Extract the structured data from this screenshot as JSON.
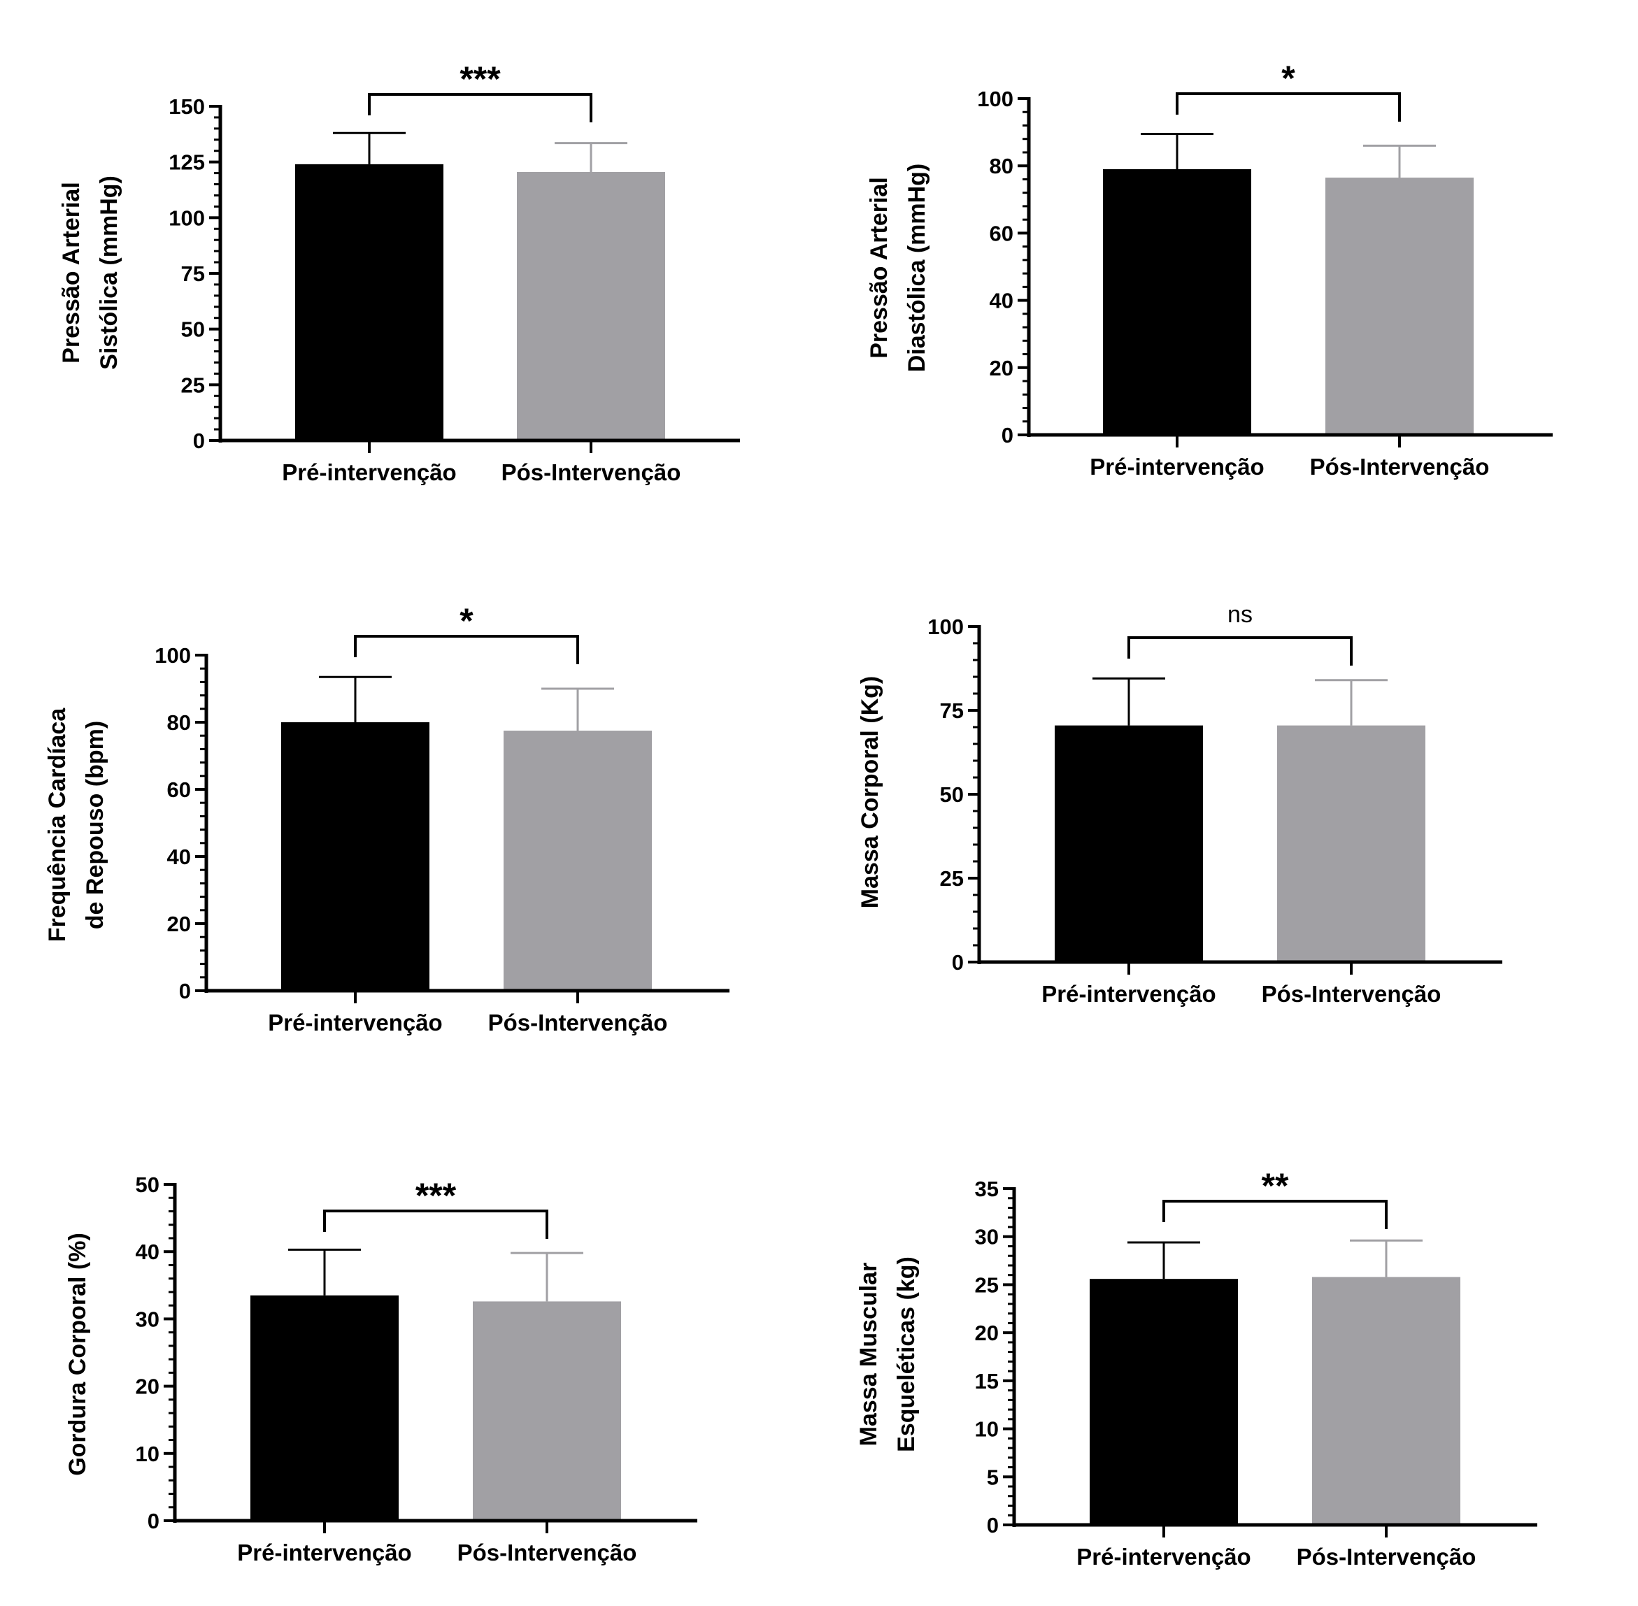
{
  "colors": {
    "pre": "#000000",
    "post": "#a1a0a4",
    "axis": "#000000"
  },
  "chart_data": [
    {
      "type": "bar",
      "categories": [
        "Pré-intervenção",
        "Pós-Intervenção"
      ],
      "values": [
        124,
        120.5
      ],
      "errors": [
        14,
        13
      ],
      "ylabel": [
        "Pressão Arterial",
        "Sistólica (mmHg)"
      ],
      "ylim": [
        0,
        150
      ],
      "yticks": [
        "0",
        "25",
        "50",
        "75",
        "100",
        "125",
        "150"
      ],
      "significance": "***"
    },
    {
      "type": "bar",
      "categories": [
        "Pré-intervenção",
        "Pós-Intervenção"
      ],
      "values": [
        79,
        76.5
      ],
      "errors": [
        10.5,
        9.5
      ],
      "ylabel": [
        "Pressão Arterial",
        "Diastólica (mmHg)"
      ],
      "ylim": [
        0,
        100
      ],
      "yticks": [
        "0",
        "20",
        "40",
        "60",
        "80",
        "100"
      ],
      "significance": "*"
    },
    {
      "type": "bar",
      "categories": [
        "Pré-intervenção",
        "Pós-Intervenção"
      ],
      "values": [
        80,
        77.5
      ],
      "errors": [
        13.5,
        12.5
      ],
      "ylabel": [
        "Frequência Cardíaca",
        "de Repouso (bpm)"
      ],
      "ylim": [
        0,
        100
      ],
      "yticks": [
        "0",
        "20",
        "40",
        "60",
        "80",
        "100"
      ],
      "significance": "*"
    },
    {
      "type": "bar",
      "categories": [
        "Pré-intervenção",
        "Pós-Intervenção"
      ],
      "values": [
        70.5,
        70.5
      ],
      "errors": [
        14,
        13.5
      ],
      "ylabel": [
        "Massa Corporal (Kg)"
      ],
      "ylim": [
        0,
        100
      ],
      "yticks": [
        "0",
        "25",
        "50",
        "75",
        "100"
      ],
      "significance": "ns"
    },
    {
      "type": "bar",
      "categories": [
        "Pré-intervenção",
        "Pós-Intervenção"
      ],
      "values": [
        33.5,
        32.6
      ],
      "errors": [
        6.8,
        7.2
      ],
      "ylabel": [
        "Gordura Corporal (%)"
      ],
      "ylim": [
        0,
        50
      ],
      "yticks": [
        "0",
        "10",
        "20",
        "30",
        "40",
        "50"
      ],
      "significance": "***"
    },
    {
      "type": "bar",
      "categories": [
        "Pré-intervenção",
        "Pós-Intervenção"
      ],
      "values": [
        25.6,
        25.8
      ],
      "errors": [
        3.8,
        3.8
      ],
      "ylabel": [
        "Massa Muscular",
        "Esqueléticas (kg)"
      ],
      "ylim": [
        0,
        35
      ],
      "yticks": [
        "0",
        "5",
        "10",
        "15",
        "20",
        "25",
        "30",
        "35"
      ],
      "significance": "**"
    }
  ]
}
